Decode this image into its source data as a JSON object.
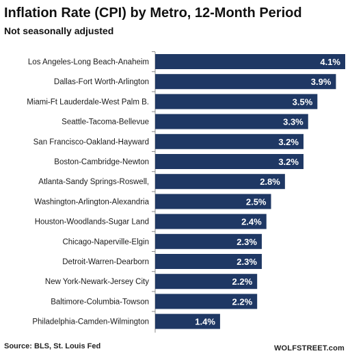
{
  "chart_data": {
    "type": "bar",
    "orientation": "horizontal",
    "title": "Inflation Rate (CPI) by Metro, 12-Month Period",
    "subtitle": "Not seasonally adjusted",
    "categories": [
      "Los Angeles-Long Beach-Anaheim",
      "Dallas-Fort Worth-Arlington",
      "Miami-Ft Lauderdale-West Palm B.",
      "Seattle-Tacoma-Bellevue",
      "San Francisco-Oakland-Hayward",
      "Boston-Cambridge-Newton",
      "Atlanta-Sandy Springs-Roswell,",
      "Washington-Arlington-Alexandria",
      "Houston-Woodlands-Sugar Land",
      "Chicago-Naperville-Elgin",
      "Detroit-Warren-Dearborn",
      "New York-Newark-Jersey City",
      "Baltimore-Columbia-Towson",
      "Philadelphia-Camden-Wilmington"
    ],
    "values": [
      4.1,
      3.9,
      3.5,
      3.3,
      3.2,
      3.2,
      2.8,
      2.5,
      2.4,
      2.3,
      2.3,
      2.2,
      2.2,
      1.4
    ],
    "value_labels": [
      "4.1%",
      "3.9%",
      "3.5%",
      "3.3%",
      "3.2%",
      "3.2%",
      "2.8%",
      "2.5%",
      "2.4%",
      "2.3%",
      "2.3%",
      "2.2%",
      "2.2%",
      "1.4%"
    ],
    "xlim": [
      0,
      4.1
    ],
    "bar_color": "#1f3864",
    "label_color": "#ffffff",
    "grid": false,
    "legend": "none"
  },
  "footer": {
    "source": "Source: BLS, St. Louis Fed",
    "brand": "WOLFSTREET.com"
  }
}
